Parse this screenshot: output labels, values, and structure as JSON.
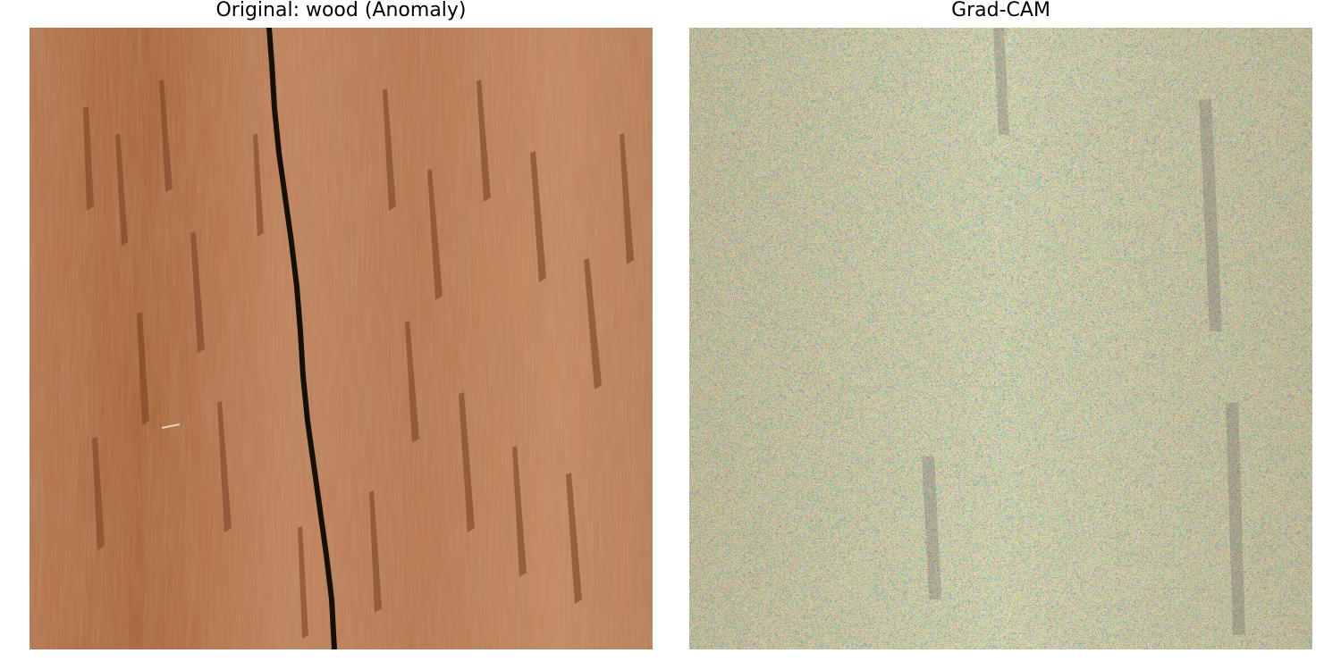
{
  "panels": [
    {
      "title": "Original: wood (Anomaly)",
      "image": "wood texture with vertical crack",
      "colors": {
        "wood_base": "#b27450",
        "wood_light": "#c48a63",
        "wood_dark": "#7a4628",
        "crack": "#141008"
      }
    },
    {
      "title": "Grad-CAM",
      "image": "Grad-CAM heatmap overlay on wood texture",
      "colors": {
        "noise_palette": [
          "#e0a020",
          "#7ac0a0",
          "#5a4aa8",
          "#e06030",
          "#90b060",
          "#d04040",
          "#c8b050",
          "#4a8aa0",
          "#a86040"
        ]
      }
    }
  ]
}
